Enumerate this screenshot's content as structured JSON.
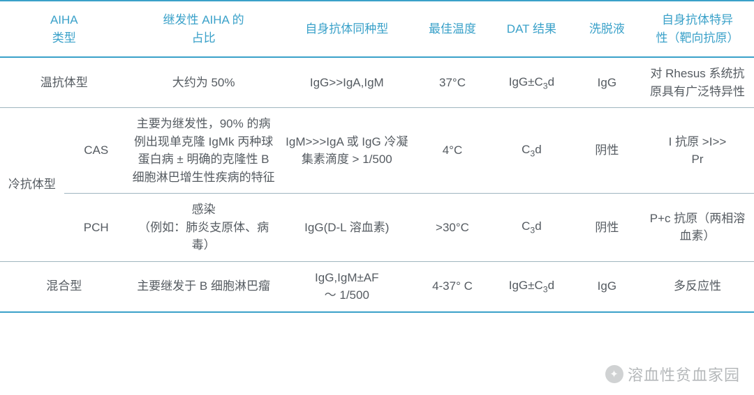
{
  "colors": {
    "header_text": "#3aa1c9",
    "body_text": "#555b61",
    "bold_rule": "#3aa1c9",
    "light_rule": "#9fb5bf",
    "background": "#ffffff"
  },
  "typography": {
    "header_fontsize_pt": 13,
    "body_fontsize_pt": 13,
    "font_family": "PingFang SC / Microsoft YaHei"
  },
  "table": {
    "type": "table",
    "col_widths_pct": [
      17,
      20,
      18,
      10,
      11,
      9,
      15
    ],
    "columns": [
      "AIHA\n类型",
      "继发性 AIHA 的\n占比",
      "自身抗体同种型",
      "最佳温度",
      "DAT 结果",
      "洗脱液",
      "自身抗体特异\n性（靶向抗原）"
    ],
    "rows": [
      {
        "type_main": "温抗体型",
        "type_sub": "",
        "secondary": "大约为 50%",
        "isotype": "IgG>>IgA,IgM",
        "temp": "37°C",
        "dat": "IgG±C₃d",
        "eluate": "IgG",
        "specificity": "对 Rhesus 系统抗原具有广泛特异性"
      },
      {
        "type_main": "冷抗体型",
        "type_sub": "CAS",
        "secondary": "主要为继发性，90% 的病例出现单克隆 IgMk 丙种球蛋白病 ± 明确的克隆性 B 细胞淋巴增生性疾病的特征",
        "isotype": "IgM>>>IgA 或 IgG 冷凝集素滴度 > 1/500",
        "temp": "4°C",
        "dat": "C₃d",
        "eluate": "阴性",
        "specificity": "I 抗原 >I>>\nPr"
      },
      {
        "type_main": "",
        "type_sub": "PCH",
        "secondary": "感染\n（例如：肺炎支原体、病毒）",
        "isotype": "IgG(D-L 溶血素)",
        "temp": ">30°C",
        "dat": "C₃d",
        "eluate": "阴性",
        "specificity": "P+c 抗原（两相溶血素）"
      },
      {
        "type_main": "混合型",
        "type_sub": "",
        "secondary": "主要继发于 B 细胞淋巴瘤",
        "isotype": "IgG,IgM±AF\n～ 1/500",
        "temp": "4-37° C",
        "dat": "IgG±C₃d",
        "eluate": "IgG",
        "specificity": "多反应性"
      }
    ]
  },
  "watermark": "溶血性贫血家园"
}
